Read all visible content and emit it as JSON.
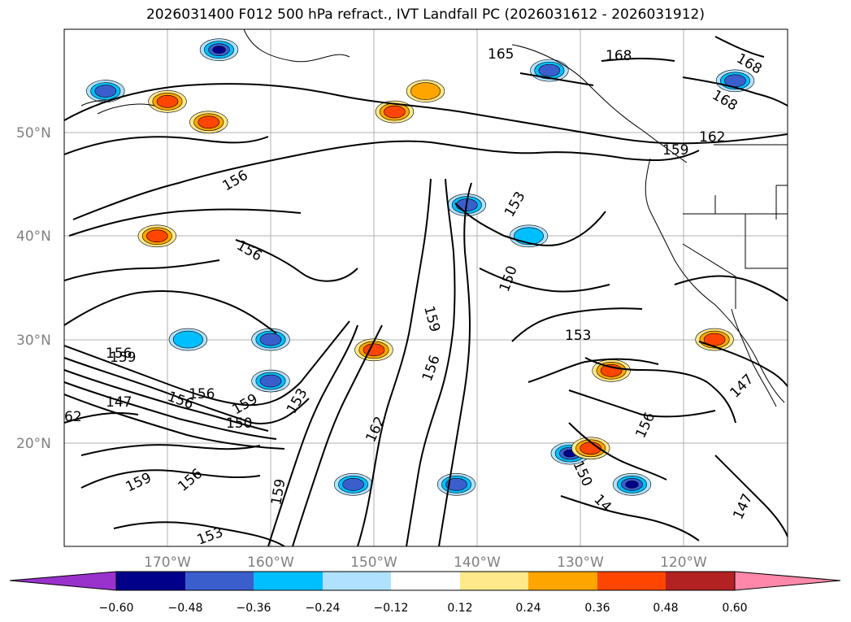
{
  "title": "2026031400 F012 500 hPa refract., IVT Landfall PC (2026031612 - 2026031912)",
  "map": {
    "lat_labels": [
      "50°N",
      "40°N",
      "30°N",
      "20°N"
    ],
    "lon_labels": [
      "170°W",
      "160°W",
      "150°W",
      "140°W",
      "130°W",
      "120°W"
    ],
    "colors": {
      "land_border": "#000000",
      "grid": "#b0b0b0",
      "contour": "#000000"
    },
    "contour_labels": [
      "165",
      "168",
      "168",
      "168",
      "162",
      "159",
      "156",
      "156",
      "153",
      "150",
      "153",
      "159",
      "156",
      "156",
      "159",
      "156",
      "147",
      "156",
      "159",
      "150",
      "153",
      "162",
      "147",
      "62",
      "156",
      "150",
      "14",
      "147",
      "159",
      "156",
      "159",
      "153"
    ],
    "anomaly_blobs": [
      {
        "lon": -170,
        "lat": 53,
        "value": 0.42
      },
      {
        "lon": -166,
        "lat": 51,
        "value": 0.5
      },
      {
        "lon": -176,
        "lat": 54,
        "value": -0.4
      },
      {
        "lon": -165,
        "lat": 58,
        "value": -0.55
      },
      {
        "lon": -141,
        "lat": 43,
        "value": -0.5
      },
      {
        "lon": -135,
        "lat": 40,
        "value": -0.35
      },
      {
        "lon": -150,
        "lat": 29,
        "value": 0.4
      },
      {
        "lon": -127,
        "lat": 27,
        "value": 0.5
      },
      {
        "lon": -131,
        "lat": 19,
        "value": -0.55
      },
      {
        "lon": -125,
        "lat": 16,
        "value": -0.55
      },
      {
        "lon": -129,
        "lat": 19.5,
        "value": 0.45
      },
      {
        "lon": -148,
        "lat": 52,
        "value": 0.4
      },
      {
        "lon": -133,
        "lat": 56,
        "value": -0.4
      },
      {
        "lon": -171,
        "lat": 40,
        "value": 0.4
      },
      {
        "lon": -160,
        "lat": 30,
        "value": -0.4
      },
      {
        "lon": -168,
        "lat": 30,
        "value": -0.35
      },
      {
        "lon": -145,
        "lat": 54,
        "value": 0.35
      },
      {
        "lon": -117,
        "lat": 30,
        "value": 0.45
      },
      {
        "lon": -142,
        "lat": 16,
        "value": -0.45
      },
      {
        "lon": -160,
        "lat": 26,
        "value": -0.45
      },
      {
        "lon": -152,
        "lat": 16,
        "value": -0.45
      },
      {
        "lon": -115,
        "lat": 55,
        "value": -0.45
      }
    ]
  },
  "colorbar": {
    "ticks": [
      "−0.60",
      "−0.48",
      "−0.36",
      "−0.24",
      "−0.12",
      "0.12",
      "0.24",
      "0.36",
      "0.48",
      "0.60"
    ],
    "colors": [
      "#9932cc",
      "#00008b",
      "#3a5fcd",
      "#00bfff",
      "#b0e2ff",
      "#ffffff",
      "#ffe98a",
      "#ffa500",
      "#ff4500",
      "#b22222",
      "#ff88aa",
      "#ff88aa"
    ]
  }
}
